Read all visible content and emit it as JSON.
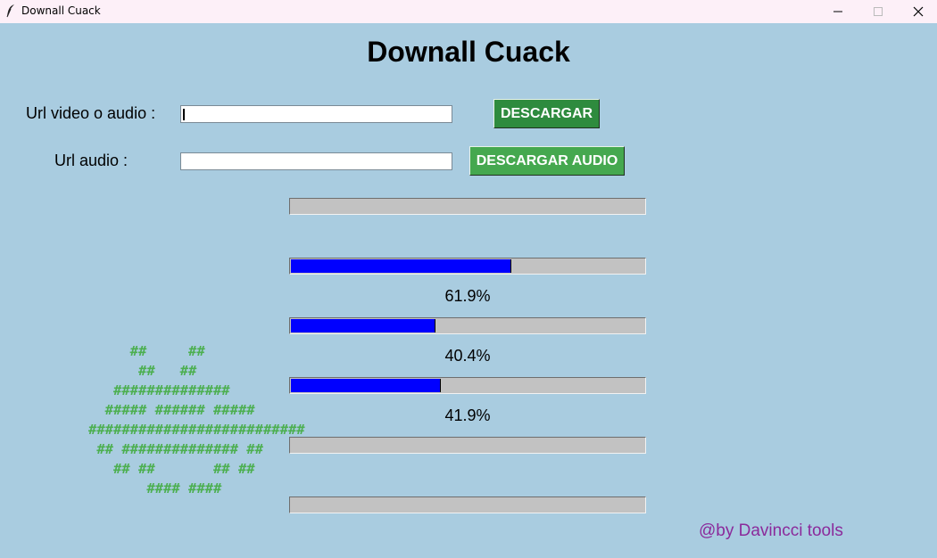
{
  "window": {
    "title": "Downall Cuack",
    "icon": "feather-icon",
    "controls": [
      "minimize-icon",
      "maximize-icon",
      "close-icon"
    ],
    "background_color": "#a9cce0"
  },
  "header": {
    "title": "Downall Cuack"
  },
  "form": {
    "url_label": "Url video o audio :",
    "url_value": "",
    "audio_label": "Url audio :",
    "audio_value": "",
    "download_button": "DESCARGAR",
    "download_audio_button": "DESCARGAR AUDIO",
    "download_button_color": "#2e8b3e",
    "download_audio_button_color": "#45a84f"
  },
  "progress": {
    "fill_color": "#0000ff",
    "bars": [
      {
        "value": 0
      },
      {
        "value": 0.619,
        "label": "61.9%"
      },
      {
        "value": 0.404,
        "label": "40.4%"
      },
      {
        "value": 0.419,
        "label": "41.9%"
      },
      {
        "value": 0
      },
      {
        "value": 0
      }
    ]
  },
  "ascii_art": {
    "color": "#4caf50",
    "lines": [
      "     ##     ##",
      "      ##   ##",
      "   ##############",
      "  ##### ###### #####",
      "##########################",
      " ## ############## ##",
      "   ## ##       ## ##",
      "       #### ####"
    ]
  },
  "footer": {
    "credit": "@by Davincci tools",
    "credit_color": "#8b2a9b"
  }
}
